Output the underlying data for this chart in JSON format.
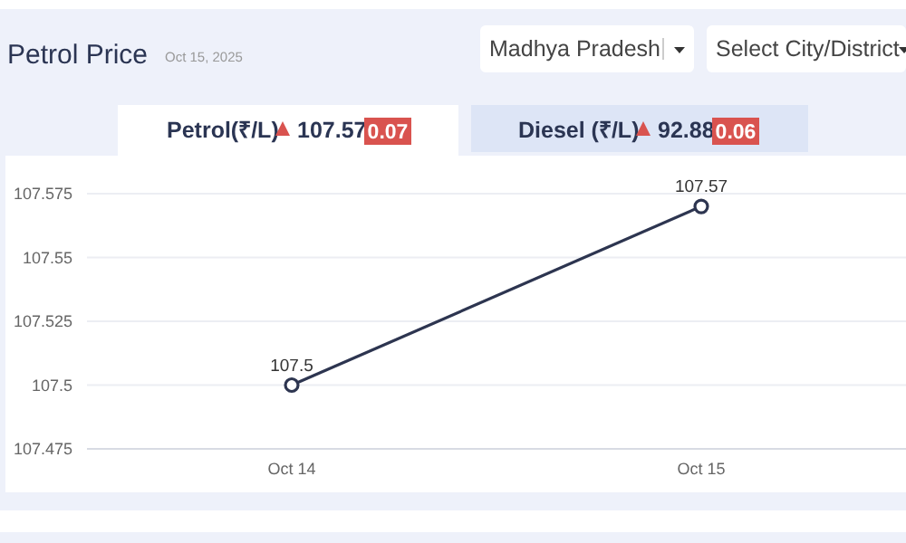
{
  "chart_data": {
    "type": "line",
    "title": "Petrol Price",
    "subtitle": "Oct 15, 2025",
    "annotations": [
      "Madhya Pradesh",
      "Select City/District",
      "Petrol(₹/L)",
      "107.57",
      "0.07",
      "Diesel (₹/L)",
      "92.88",
      "0.06"
    ],
    "categories": [
      "Oct 14",
      "Oct 15"
    ],
    "series": [
      {
        "color": "#2d3550",
        "values": [
          107.5,
          107.57
        ]
      }
    ],
    "ylim": [
      107.475,
      107.575
    ],
    "yticks": [
      107.475,
      107.5,
      107.525,
      107.55,
      107.575
    ],
    "grid": "y",
    "marker": "circle",
    "line_style": "solid",
    "data_labels": true
  }
}
